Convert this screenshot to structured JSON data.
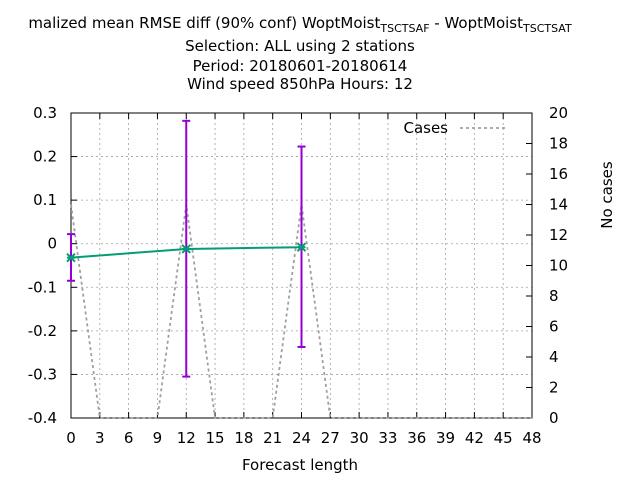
{
  "title": {
    "line1": "malized mean RMSE diff (90% conf) WoptMoist",
    "line1_sub1": "TSCTSAF",
    "line1_mid": " - WoptMoist",
    "line1_sub2": "TSCTSAT",
    "line2": "Selection: ALL using     2 stations",
    "line3": "Period: 20180601-20180614",
    "line4": "Wind speed 850hPa   Hours:  12"
  },
  "colors": {
    "diff": "#009e73",
    "ci": "#9400d3",
    "cases": "#a0a0a0",
    "grid": "#a0a0a0"
  },
  "chart_data": {
    "type": "line",
    "xlabel": "Forecast length",
    "ylabel": "",
    "y2label": "No cases",
    "xlim": [
      0,
      48
    ],
    "ylim": [
      -0.4,
      0.3
    ],
    "y2lim": [
      0,
      20
    ],
    "xticks": [
      "0",
      "3",
      "6",
      "9",
      "12",
      "15",
      "18",
      "21",
      "24",
      "27",
      "30",
      "33",
      "36",
      "39",
      "42",
      "45",
      "48"
    ],
    "yticks": [
      "-0.4",
      "-0.3",
      "-0.2",
      "-0.1",
      "0",
      "0.1",
      "0.2",
      "0.3"
    ],
    "y2ticks": [
      "0",
      "2",
      "4",
      "6",
      "8",
      "10",
      "12",
      "14",
      "16",
      "18",
      "20"
    ],
    "grid": true,
    "legend_position": "top-right",
    "series": [
      {
        "name": "",
        "axis": "y",
        "x": [
          0,
          12,
          24
        ],
        "values": [
          -0.032,
          -0.012,
          -0.008
        ]
      },
      {
        "name": "Cases",
        "axis": "y2",
        "x": [
          0,
          3,
          6,
          9,
          12,
          15,
          18,
          21,
          24,
          27,
          30,
          33,
          36,
          39,
          42,
          45,
          48
        ],
        "values": [
          14,
          0,
          0,
          0,
          14,
          0,
          0,
          0,
          14,
          0,
          0,
          0,
          0,
          0,
          0,
          0,
          0
        ]
      }
    ],
    "error_bars": [
      {
        "x": 0,
        "low": -0.085,
        "high": 0.022
      },
      {
        "x": 12,
        "low": -0.305,
        "high": 0.282
      },
      {
        "x": 24,
        "low": -0.237,
        "high": 0.223
      }
    ]
  }
}
